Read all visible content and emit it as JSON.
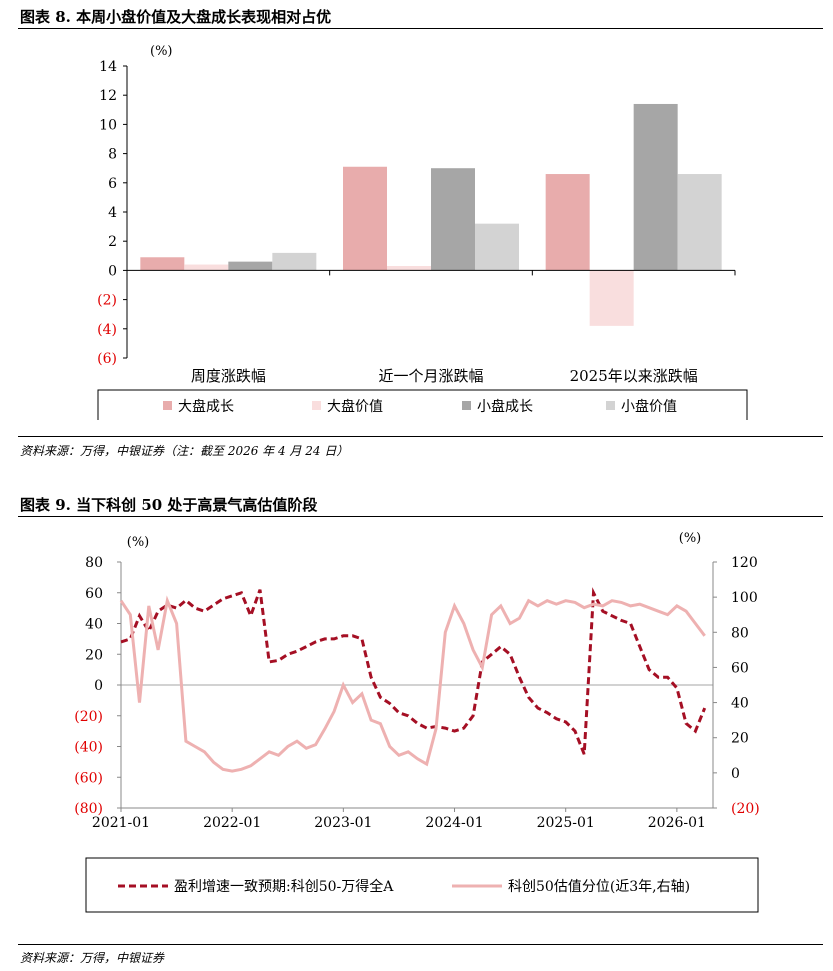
{
  "fig8": {
    "title": "图表 8. 本周小盘价值及大盘成长表现相对占优",
    "source": "资料来源：万得，中银证券（注：截至 2026 年 4 月 24 日）"
  },
  "fig9": {
    "title": "图表 9. 当下科创 50 处于高景气高估值阶段",
    "source": "资料来源：万得，中银证券"
  },
  "colors": {
    "large_growth": "#e8acac",
    "large_value": "#f9dede",
    "small_growth": "#a6a6a6",
    "small_value": "#d3d3d3",
    "earnings_line": "#a50f24",
    "valuation_line": "#eeb1b1",
    "negative_tick": "#e00000"
  },
  "chart_data": [
    {
      "type": "bar",
      "unit_label": "(%)",
      "categories": [
        "周度涨跌幅",
        "近一个月涨跌幅",
        "2025年以来涨跌幅"
      ],
      "series": [
        {
          "name": "大盘成长",
          "values": [
            0.9,
            7.1,
            6.6
          ]
        },
        {
          "name": "大盘价值",
          "values": [
            0.4,
            0.3,
            -3.8
          ]
        },
        {
          "name": "小盘成长",
          "values": [
            0.6,
            7.0,
            11.4
          ]
        },
        {
          "name": "小盘价值",
          "values": [
            1.2,
            3.2,
            6.6
          ]
        }
      ],
      "ylim": [
        -6,
        14
      ],
      "yticks": [
        14,
        12,
        10,
        8,
        6,
        4,
        2,
        0,
        -2,
        -4,
        -6
      ],
      "ytick_labels": [
        "14",
        "12",
        "10",
        "8",
        "6",
        "4",
        "2",
        "0",
        "(2)",
        "(4)",
        "(6)"
      ],
      "legend": "bottom"
    },
    {
      "type": "line",
      "left_unit_label": "(%)",
      "right_unit_label": "(%)",
      "x_ticks": [
        "2021-01",
        "2022-01",
        "2023-01",
        "2024-01",
        "2025-01",
        "2026-01"
      ],
      "y_left_lim": [
        -80,
        80
      ],
      "y_left_ticks": [
        80,
        60,
        40,
        20,
        0,
        -20,
        -40,
        -60,
        -80
      ],
      "y_left_tick_labels": [
        "80",
        "60",
        "40",
        "20",
        "0",
        "(20)",
        "(40)",
        "(60)",
        "(80)"
      ],
      "y_right_lim": [
        -20,
        120
      ],
      "y_right_ticks": [
        120,
        100,
        80,
        60,
        40,
        20,
        0,
        -20
      ],
      "y_right_tick_labels": [
        "120",
        "100",
        "80",
        "60",
        "40",
        "20",
        "0",
        "(20)"
      ],
      "legend": "bottom",
      "series": [
        {
          "name": "盈利增速一致预期:科创50-万得全A",
          "axis": "left",
          "style": "dashed",
          "x": [
            "2021-01",
            "2021-02",
            "2021-03",
            "2021-04",
            "2021-05",
            "2021-06",
            "2021-07",
            "2021-08",
            "2021-09",
            "2021-10",
            "2021-11",
            "2021-12",
            "2022-01",
            "2022-02",
            "2022-03",
            "2022-04",
            "2022-05",
            "2022-06",
            "2022-07",
            "2022-08",
            "2022-09",
            "2022-10",
            "2022-11",
            "2022-12",
            "2023-01",
            "2023-02",
            "2023-03",
            "2023-04",
            "2023-05",
            "2023-06",
            "2023-07",
            "2023-08",
            "2023-09",
            "2023-10",
            "2023-11",
            "2023-12",
            "2024-01",
            "2024-02",
            "2024-03",
            "2024-04",
            "2024-05",
            "2024-06",
            "2024-07",
            "2024-08",
            "2024-09",
            "2024-10",
            "2024-11",
            "2024-12",
            "2025-01",
            "2025-02",
            "2025-03",
            "2025-04",
            "2025-05",
            "2025-06",
            "2025-07",
            "2025-08",
            "2025-09",
            "2025-10",
            "2025-11",
            "2025-12",
            "2026-01",
            "2026-02",
            "2026-03",
            "2026-04"
          ],
          "values": [
            28,
            30,
            45,
            35,
            48,
            52,
            50,
            55,
            50,
            48,
            52,
            56,
            58,
            60,
            45,
            62,
            15,
            16,
            20,
            22,
            25,
            28,
            30,
            30,
            32,
            32,
            30,
            5,
            -8,
            -12,
            -18,
            -20,
            -25,
            -28,
            -27,
            -28,
            -30,
            -28,
            -20,
            15,
            20,
            25,
            20,
            5,
            -8,
            -15,
            -18,
            -22,
            -24,
            -30,
            -45,
            60,
            48,
            45,
            42,
            40,
            25,
            10,
            5,
            5,
            -2,
            -25,
            -30,
            -15
          ]
        },
        {
          "name": "科创50估值分位(近3年,右轴)",
          "axis": "right",
          "style": "solid",
          "x": [
            "2021-01",
            "2021-02",
            "2021-03",
            "2021-04",
            "2021-05",
            "2021-06",
            "2021-07",
            "2021-08",
            "2021-09",
            "2021-10",
            "2021-11",
            "2021-12",
            "2022-01",
            "2022-02",
            "2022-03",
            "2022-04",
            "2022-05",
            "2022-06",
            "2022-07",
            "2022-08",
            "2022-09",
            "2022-10",
            "2022-11",
            "2022-12",
            "2023-01",
            "2023-02",
            "2023-03",
            "2023-04",
            "2023-05",
            "2023-06",
            "2023-07",
            "2023-08",
            "2023-09",
            "2023-10",
            "2023-11",
            "2023-12",
            "2024-01",
            "2024-02",
            "2024-03",
            "2024-04",
            "2024-05",
            "2024-06",
            "2024-07",
            "2024-08",
            "2024-09",
            "2024-10",
            "2024-11",
            "2024-12",
            "2025-01",
            "2025-02",
            "2025-03",
            "2025-04",
            "2025-05",
            "2025-06",
            "2025-07",
            "2025-08",
            "2025-09",
            "2025-10",
            "2025-11",
            "2025-12",
            "2026-01",
            "2026-02",
            "2026-03",
            "2026-04"
          ],
          "values": [
            98,
            90,
            40,
            95,
            70,
            98,
            85,
            18,
            15,
            12,
            6,
            2,
            1,
            2,
            4,
            8,
            12,
            10,
            15,
            18,
            14,
            16,
            25,
            35,
            50,
            40,
            45,
            30,
            28,
            15,
            10,
            12,
            8,
            5,
            25,
            80,
            95,
            85,
            70,
            60,
            90,
            95,
            85,
            88,
            98,
            95,
            98,
            96,
            98,
            97,
            94,
            96,
            95,
            98,
            97,
            95,
            96,
            94,
            92,
            90,
            95,
            92,
            85,
            78
          ]
        }
      ]
    }
  ]
}
